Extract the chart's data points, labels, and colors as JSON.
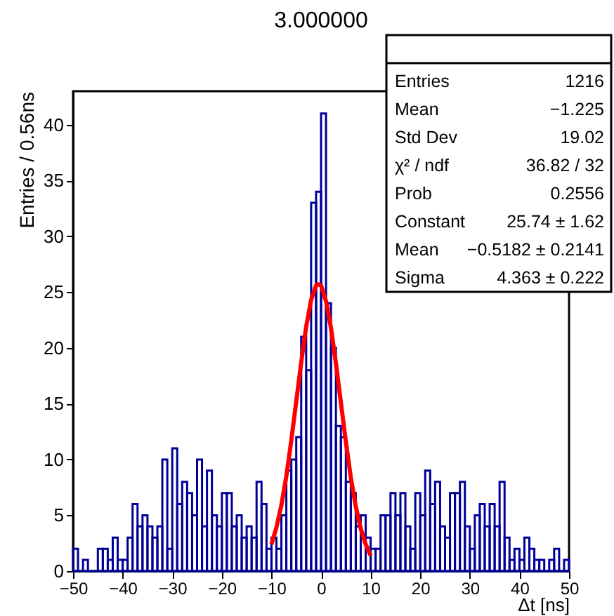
{
  "chart_data": {
    "type": "histogram",
    "title": "3.000000",
    "xlabel": "Δt [ns]",
    "ylabel": "Entries / 0.56ns",
    "bins": [
      -50,
      -49,
      -48,
      -47,
      -46,
      -45,
      -44,
      -43,
      -42,
      -41,
      -40,
      -39,
      -38,
      -37,
      -36,
      -35,
      -34,
      -33,
      -32,
      -31,
      -30,
      -29,
      -28,
      -27,
      -26,
      -25,
      -24,
      -23,
      -22,
      -21,
      -20,
      -19,
      -18,
      -17,
      -16,
      -15,
      -14,
      -13,
      -12,
      -11,
      -10,
      -9,
      -8,
      -7,
      -6,
      -5,
      -4,
      -3,
      -2,
      -1,
      0,
      1,
      2,
      3,
      4,
      5,
      6,
      7,
      8,
      9,
      10,
      11,
      12,
      13,
      14,
      15,
      16,
      17,
      18,
      19,
      20,
      21,
      22,
      23,
      24,
      25,
      26,
      27,
      28,
      29,
      30,
      31,
      32,
      33,
      34,
      35,
      36,
      37,
      38,
      39,
      40,
      41,
      42,
      43,
      44,
      45,
      46,
      47,
      48,
      49,
      50
    ],
    "series": [
      {
        "color": "#000099",
        "values": [
          2,
          0,
          1,
          0,
          0,
          2,
          2,
          1,
          3,
          1,
          1,
          3,
          6,
          4,
          5,
          4,
          3,
          4,
          10,
          2,
          11,
          6,
          8,
          7,
          5,
          10,
          4,
          9,
          5,
          4,
          7,
          7,
          4,
          5,
          3,
          4,
          3,
          8,
          6,
          2,
          3,
          2,
          5,
          9,
          10,
          12,
          21,
          18,
          33,
          34,
          41,
          24,
          20,
          13,
          12,
          8,
          7,
          4,
          5,
          3,
          2,
          2,
          5,
          5,
          7,
          5,
          7,
          4,
          2,
          7,
          5,
          9,
          6,
          8,
          4,
          3,
          7,
          7,
          8,
          4,
          2,
          5,
          6,
          4,
          6,
          4,
          8,
          3,
          1,
          2,
          1,
          3,
          2,
          1,
          1,
          0,
          1,
          2,
          0,
          1
        ]
      },
      {
        "type": "line",
        "color": "#ff0000",
        "x": [
          -10,
          -9,
          -8,
          -7,
          -6,
          -5,
          -4,
          -3,
          -2,
          -1,
          -0.518,
          0,
          1,
          2,
          3,
          4,
          5,
          6,
          7,
          8,
          9,
          10
        ],
        "values": [
          2.4,
          3.9,
          5.9,
          8.5,
          11.7,
          15.2,
          18.7,
          21.9,
          24.3,
          25.6,
          25.7,
          25.6,
          24.2,
          21.8,
          18.6,
          15.1,
          11.6,
          8.4,
          5.8,
          3.8,
          2.4,
          1.4
        ]
      }
    ],
    "xlim": [
      -50,
      50
    ],
    "xticks": [
      -50,
      -40,
      -30,
      -20,
      -10,
      0,
      10,
      20,
      30,
      40,
      50
    ],
    "ylim": [
      0,
      43
    ],
    "yticks": [
      0,
      5,
      10,
      15,
      20,
      25,
      30,
      35,
      40
    ],
    "grid": false,
    "annotations": [
      "Entries",
      "1216",
      "Mean",
      "−1.225",
      "Std Dev",
      "19.02",
      "χ² / ndf",
      "36.82 / 32",
      "Prob",
      "0.2556",
      "Constant",
      "25.74 ± 1.62",
      "Mean",
      "−0.5182 ± 0.2141",
      "Sigma",
      "4.363 ± 0.222"
    ]
  }
}
